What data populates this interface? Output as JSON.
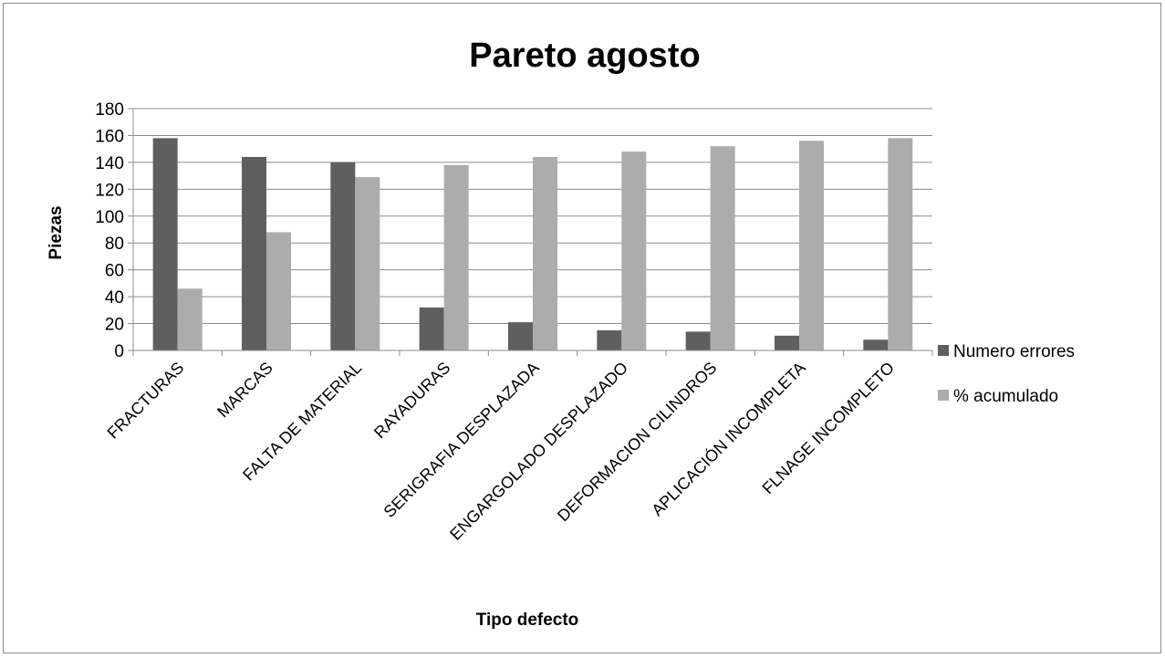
{
  "chart_data": {
    "type": "bar",
    "title": "Pareto agosto",
    "xlabel": "Tipo defecto",
    "ylabel": "Piezas",
    "ylim": [
      0,
      180
    ],
    "ytick_step": 20,
    "grid": true,
    "legend_position": "right",
    "categories": [
      "FRACTURAS",
      "MARCAS",
      "FALTA DE MATERIAL",
      "RAYADURAS",
      "SERIGRAFIA DESPLAZADA",
      "ENGARGOLADO DESPLAZADO",
      "DEFORMACION CILINDROS",
      "APLICACIÓN INCOMPLETA",
      "FLNAGE INCOMPLETO"
    ],
    "series": [
      {
        "name": "Numero errores",
        "color": "#5f5f5f",
        "values": [
          158,
          144,
          140,
          32,
          21,
          15,
          14,
          11,
          8
        ]
      },
      {
        "name": "% acumulado",
        "color": "#acacac",
        "values": [
          46,
          88,
          129,
          138,
          144,
          148,
          152,
          156,
          158
        ]
      }
    ]
  }
}
